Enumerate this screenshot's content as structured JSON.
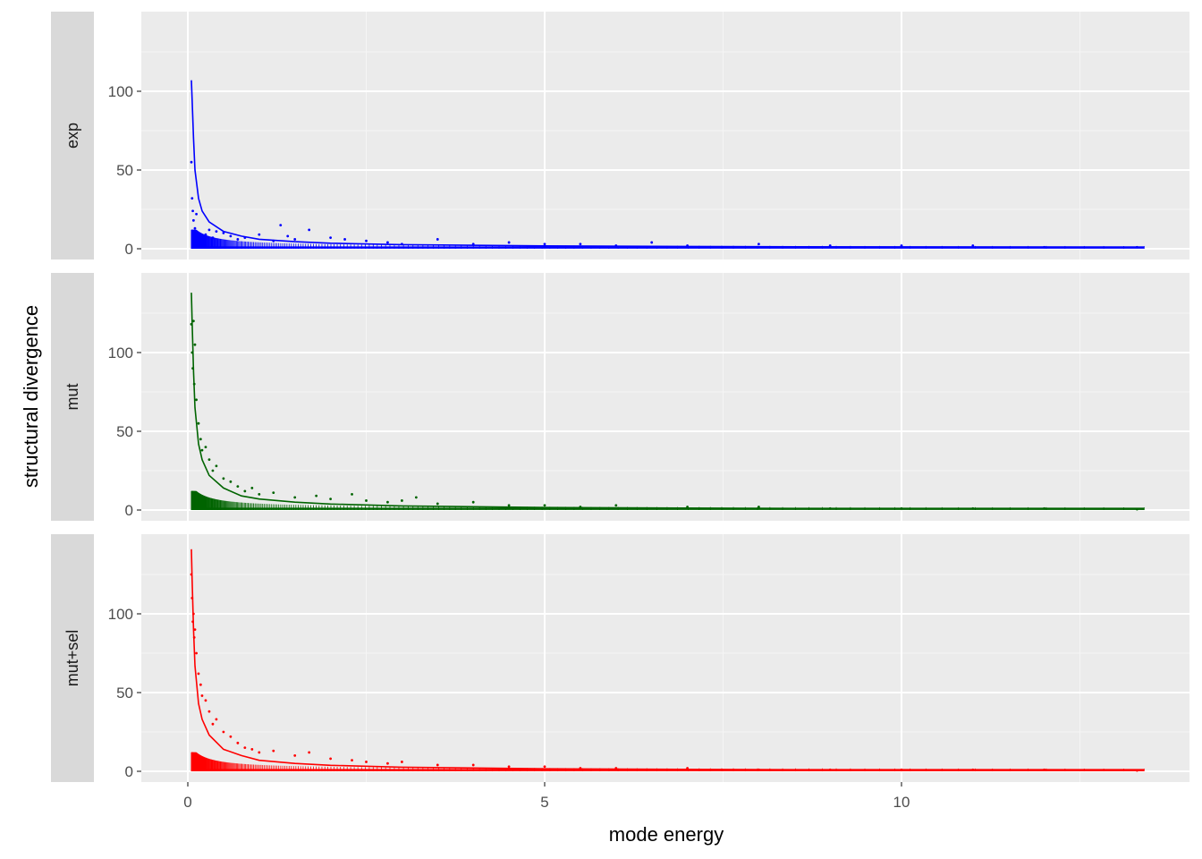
{
  "chart_data": {
    "type": "scatter",
    "xlabel": "mode energy",
    "ylabel": "structural divergence",
    "xlim": [
      0,
      13.4
    ],
    "ylim": [
      0,
      140
    ],
    "x_ticks": [
      0,
      5,
      10
    ],
    "y_ticks": [
      0,
      50,
      100
    ],
    "grid": true,
    "facet_direction": "vertical",
    "panels": [
      {
        "label": "exp",
        "color": "#0000ff",
        "fit_curve": [
          [
            0.05,
            107
          ],
          [
            0.06,
            95
          ],
          [
            0.08,
            70
          ],
          [
            0.1,
            50
          ],
          [
            0.15,
            32
          ],
          [
            0.2,
            24
          ],
          [
            0.3,
            17
          ],
          [
            0.5,
            11
          ],
          [
            0.75,
            8
          ],
          [
            1.0,
            6
          ],
          [
            1.5,
            4.5
          ],
          [
            2.0,
            3.5
          ],
          [
            3.0,
            2.6
          ],
          [
            5.0,
            1.8
          ],
          [
            8.0,
            1.3
          ],
          [
            13.4,
            1.0
          ]
        ],
        "points": [
          [
            0.05,
            55
          ],
          [
            0.06,
            32
          ],
          [
            0.07,
            24
          ],
          [
            0.08,
            18
          ],
          [
            0.1,
            13
          ],
          [
            0.12,
            22
          ],
          [
            0.15,
            10
          ],
          [
            0.2,
            8
          ],
          [
            0.25,
            9
          ],
          [
            0.3,
            12
          ],
          [
            0.35,
            7
          ],
          [
            0.4,
            11
          ],
          [
            0.5,
            10
          ],
          [
            0.6,
            8
          ],
          [
            0.7,
            6
          ],
          [
            0.8,
            7
          ],
          [
            1.0,
            9
          ],
          [
            1.2,
            5
          ],
          [
            1.3,
            15
          ],
          [
            1.4,
            8
          ],
          [
            1.5,
            6
          ],
          [
            1.7,
            12
          ],
          [
            2.0,
            7
          ],
          [
            2.2,
            6
          ],
          [
            2.5,
            5
          ],
          [
            2.8,
            4
          ],
          [
            3.0,
            3
          ],
          [
            3.5,
            6
          ],
          [
            4.0,
            3
          ],
          [
            4.5,
            4
          ],
          [
            5.0,
            3
          ],
          [
            5.5,
            3
          ],
          [
            6.0,
            2
          ],
          [
            6.5,
            4
          ],
          [
            7.0,
            2
          ],
          [
            8.0,
            3
          ],
          [
            9.0,
            2
          ],
          [
            10.0,
            2
          ],
          [
            11.0,
            2
          ],
          [
            12.0,
            1
          ],
          [
            13.3,
            1
          ]
        ]
      },
      {
        "label": "mut",
        "color": "#006400",
        "fit_curve": [
          [
            0.05,
            138
          ],
          [
            0.06,
            120
          ],
          [
            0.08,
            88
          ],
          [
            0.1,
            65
          ],
          [
            0.15,
            42
          ],
          [
            0.2,
            32
          ],
          [
            0.3,
            22
          ],
          [
            0.5,
            14
          ],
          [
            0.75,
            9
          ],
          [
            1.0,
            7
          ],
          [
            1.5,
            5
          ],
          [
            2.0,
            3.8
          ],
          [
            3.0,
            2.6
          ],
          [
            5.0,
            1.6
          ],
          [
            8.0,
            1.0
          ],
          [
            13.4,
            0.6
          ]
        ],
        "points": [
          [
            0.05,
            118
          ],
          [
            0.06,
            100
          ],
          [
            0.07,
            90
          ],
          [
            0.08,
            120
          ],
          [
            0.09,
            80
          ],
          [
            0.1,
            105
          ],
          [
            0.12,
            70
          ],
          [
            0.15,
            55
          ],
          [
            0.18,
            45
          ],
          [
            0.2,
            38
          ],
          [
            0.25,
            40
          ],
          [
            0.3,
            32
          ],
          [
            0.35,
            25
          ],
          [
            0.4,
            28
          ],
          [
            0.5,
            20
          ],
          [
            0.6,
            18
          ],
          [
            0.7,
            15
          ],
          [
            0.8,
            12
          ],
          [
            0.9,
            14
          ],
          [
            1.0,
            10
          ],
          [
            1.2,
            11
          ],
          [
            1.5,
            8
          ],
          [
            1.8,
            9
          ],
          [
            2.0,
            7
          ],
          [
            2.3,
            10
          ],
          [
            2.5,
            6
          ],
          [
            2.8,
            5
          ],
          [
            3.0,
            6
          ],
          [
            3.2,
            8
          ],
          [
            3.5,
            4
          ],
          [
            4.0,
            5
          ],
          [
            4.5,
            3
          ],
          [
            5.0,
            3
          ],
          [
            5.5,
            2
          ],
          [
            6.0,
            3
          ],
          [
            7.0,
            2
          ],
          [
            8.0,
            2
          ],
          [
            9.0,
            1
          ],
          [
            10.0,
            1
          ],
          [
            11.0,
            1
          ],
          [
            12.0,
            1
          ],
          [
            13.3,
            0.5
          ]
        ]
      },
      {
        "label": "mut+sel",
        "color": "#ff0000",
        "fit_curve": [
          [
            0.05,
            141
          ],
          [
            0.06,
            122
          ],
          [
            0.08,
            90
          ],
          [
            0.1,
            67
          ],
          [
            0.15,
            43
          ],
          [
            0.2,
            33
          ],
          [
            0.3,
            23
          ],
          [
            0.5,
            14
          ],
          [
            0.75,
            10
          ],
          [
            1.0,
            7
          ],
          [
            1.5,
            5
          ],
          [
            2.0,
            3.8
          ],
          [
            3.0,
            2.6
          ],
          [
            5.0,
            1.6
          ],
          [
            8.0,
            1.0
          ],
          [
            13.4,
            0.6
          ]
        ],
        "points": [
          [
            0.05,
            125
          ],
          [
            0.06,
            110
          ],
          [
            0.07,
            95
          ],
          [
            0.08,
            100
          ],
          [
            0.09,
            85
          ],
          [
            0.1,
            90
          ],
          [
            0.12,
            75
          ],
          [
            0.15,
            62
          ],
          [
            0.18,
            55
          ],
          [
            0.2,
            48
          ],
          [
            0.25,
            45
          ],
          [
            0.3,
            38
          ],
          [
            0.35,
            30
          ],
          [
            0.4,
            33
          ],
          [
            0.5,
            25
          ],
          [
            0.6,
            22
          ],
          [
            0.7,
            18
          ],
          [
            0.8,
            15
          ],
          [
            0.9,
            14
          ],
          [
            1.0,
            12
          ],
          [
            1.2,
            13
          ],
          [
            1.5,
            10
          ],
          [
            1.7,
            12
          ],
          [
            2.0,
            8
          ],
          [
            2.3,
            7
          ],
          [
            2.5,
            6
          ],
          [
            2.8,
            5
          ],
          [
            3.0,
            6
          ],
          [
            3.5,
            4
          ],
          [
            4.0,
            4
          ],
          [
            4.5,
            3
          ],
          [
            5.0,
            3
          ],
          [
            5.5,
            2
          ],
          [
            6.0,
            2
          ],
          [
            7.0,
            2
          ],
          [
            8.0,
            1
          ],
          [
            9.0,
            1
          ],
          [
            10.0,
            1
          ],
          [
            11.0,
            1
          ],
          [
            12.0,
            1
          ],
          [
            13.3,
            0.5
          ]
        ]
      }
    ]
  }
}
